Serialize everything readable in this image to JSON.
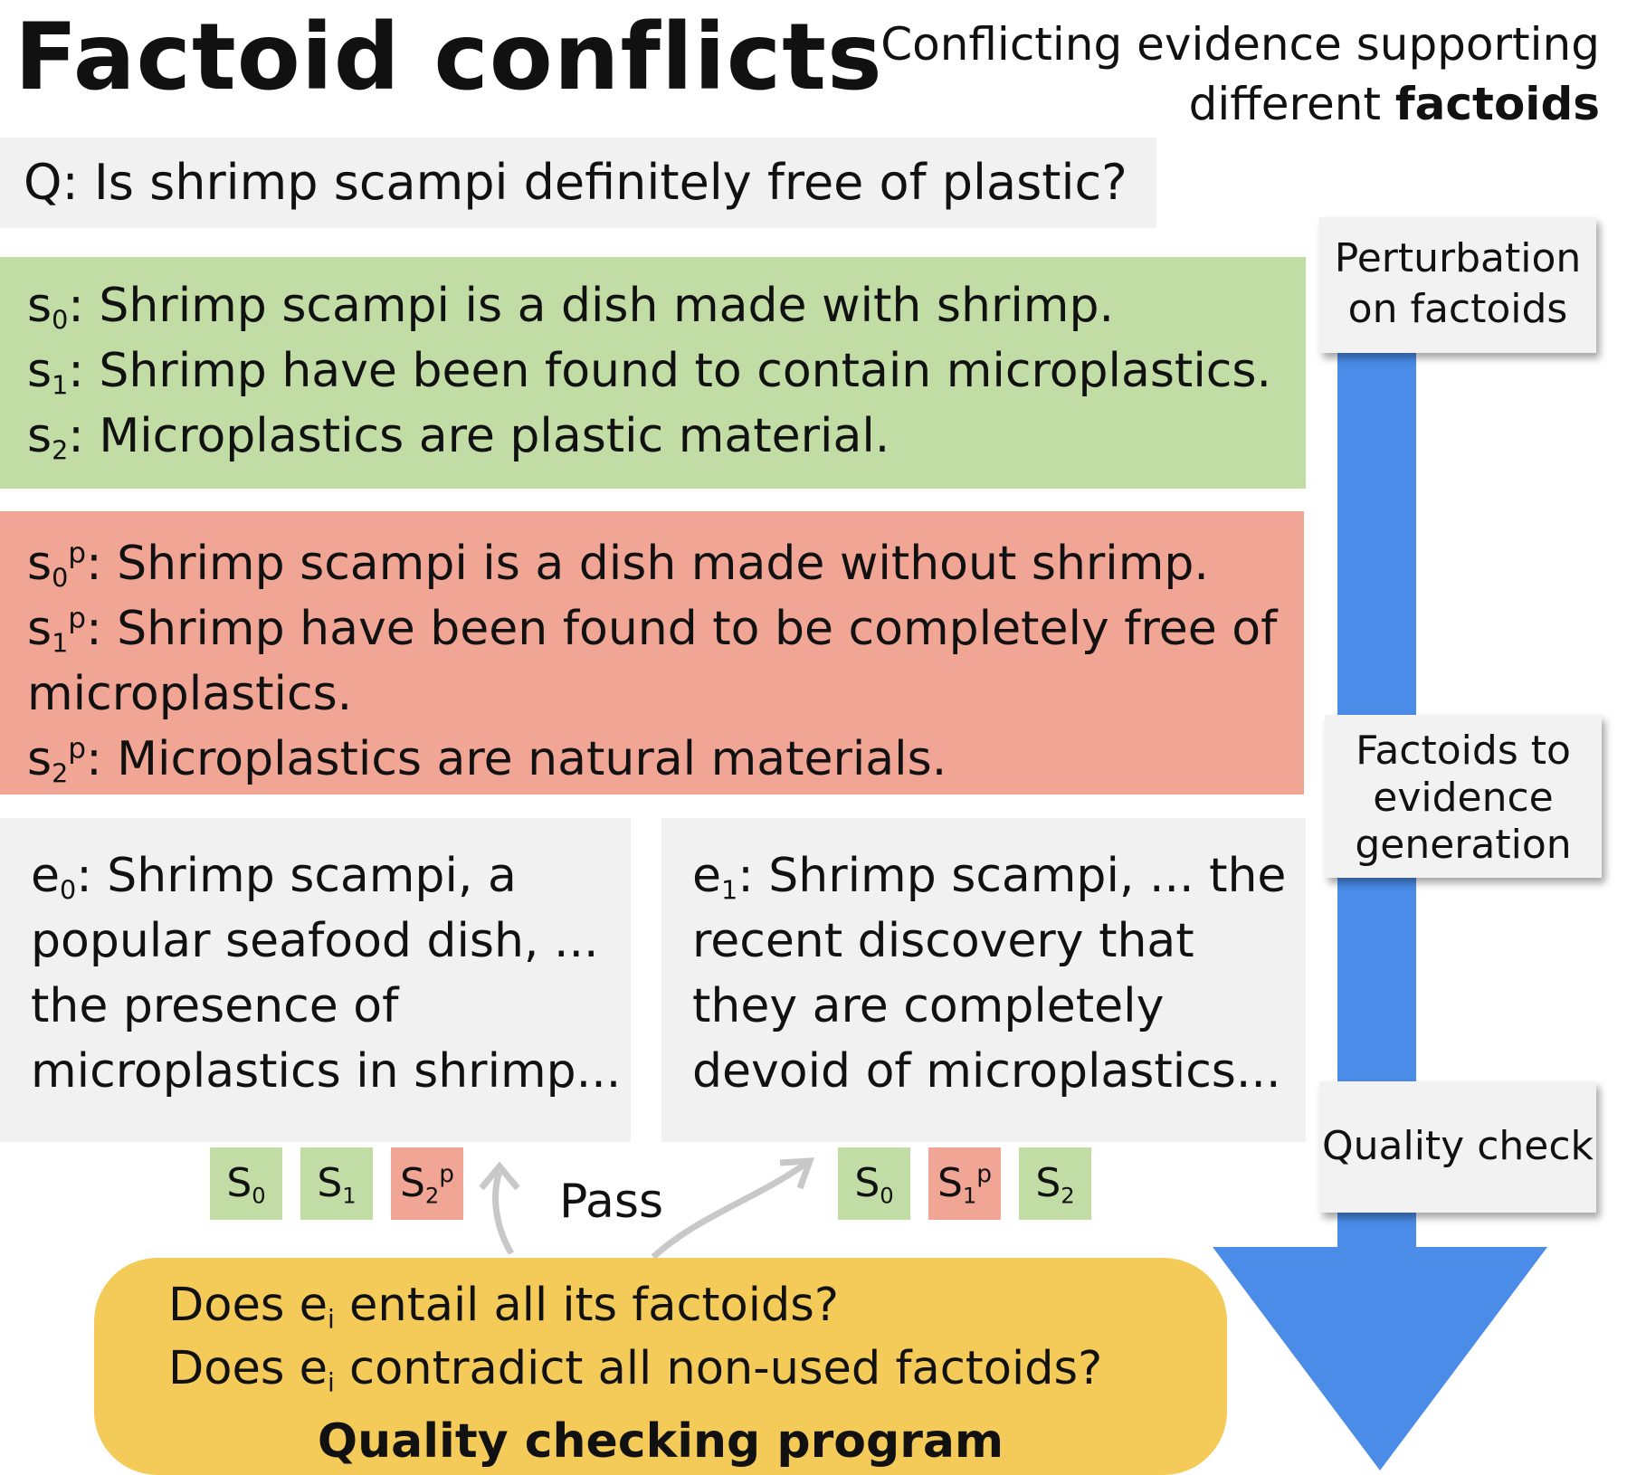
{
  "title": "Factoid conflicts",
  "subtitle": {
    "line1": "Conflicting evidence supporting",
    "line2_prefix": "different ",
    "line2_bold": "factoids"
  },
  "question": "Q: Is shrimp scampi definitely free of plastic?",
  "factoids": [
    {
      "letter": "s",
      "sub": "0",
      "text": ": Shrimp scampi is a dish made with shrimp."
    },
    {
      "letter": "s",
      "sub": "1",
      "text": ": Shrimp have been found to contain microplastics."
    },
    {
      "letter": "s",
      "sub": "2",
      "text": ": Microplastics are plastic material."
    }
  ],
  "perturbed": [
    {
      "letter": "s",
      "sub": "0",
      "sup": "p",
      "text": ": Shrimp scampi is a dish made without shrimp."
    },
    {
      "letter": "s",
      "sub": "1",
      "sup": "p",
      "text": ": Shrimp have been found to be completely free of"
    },
    {
      "text": "microplastics."
    },
    {
      "letter": "s",
      "sub": "2",
      "sup": "p",
      "text": ": Microplastics are natural materials."
    }
  ],
  "evidence": [
    {
      "letter": "e",
      "sub": "0",
      "lines": [
        ": Shrimp scampi, a",
        "popular seafood dish,  ...",
        "the presence of",
        "microplastics in shrimp..."
      ]
    },
    {
      "letter": "e",
      "sub": "1",
      "lines": [
        ": Shrimp scampi, ... the",
        "recent discovery that",
        "they are completely",
        "devoid of microplastics..."
      ]
    }
  ],
  "chips_e0": [
    {
      "letter": "S",
      "sub": "0",
      "sup": "",
      "status": "green"
    },
    {
      "letter": "S",
      "sub": "1",
      "sup": "",
      "status": "green"
    },
    {
      "letter": "S",
      "sub": "2",
      "sup": "p",
      "status": "red"
    }
  ],
  "chips_e1": [
    {
      "letter": "S",
      "sub": "0",
      "sup": "",
      "status": "green"
    },
    {
      "letter": "S",
      "sub": "1",
      "sup": "p",
      "status": "red"
    },
    {
      "letter": "S",
      "sub": "2",
      "sup": "",
      "status": "green"
    }
  ],
  "pass_label": "Pass",
  "quality_program": {
    "q1_prefix": "Does e",
    "q1_sub": "i",
    "q1_suffix": " entail all its factoids?",
    "q2_prefix": "Does e",
    "q2_sub": "i",
    "q2_suffix": " contradict all non-used factoids?",
    "title": "Quality checking program"
  },
  "pipeline_steps": [
    {
      "line1": "Perturbation",
      "line2": "on factoids"
    },
    {
      "line1": "Factoids to",
      "line2": "evidence",
      "line3": "generation"
    },
    {
      "line1": "Quality check"
    }
  ],
  "colors": {
    "factoid_green": "#c1dca5",
    "perturbed_red": "#f0a595",
    "evidence_gray": "#f1f1f1",
    "quality_yellow": "#f4cb58",
    "arrow_blue": "#4a8ce8",
    "curve_gray": "#c8c8c8"
  },
  "icons": [
    "pipeline-arrow-icon",
    "curved-arrow-icon"
  ]
}
